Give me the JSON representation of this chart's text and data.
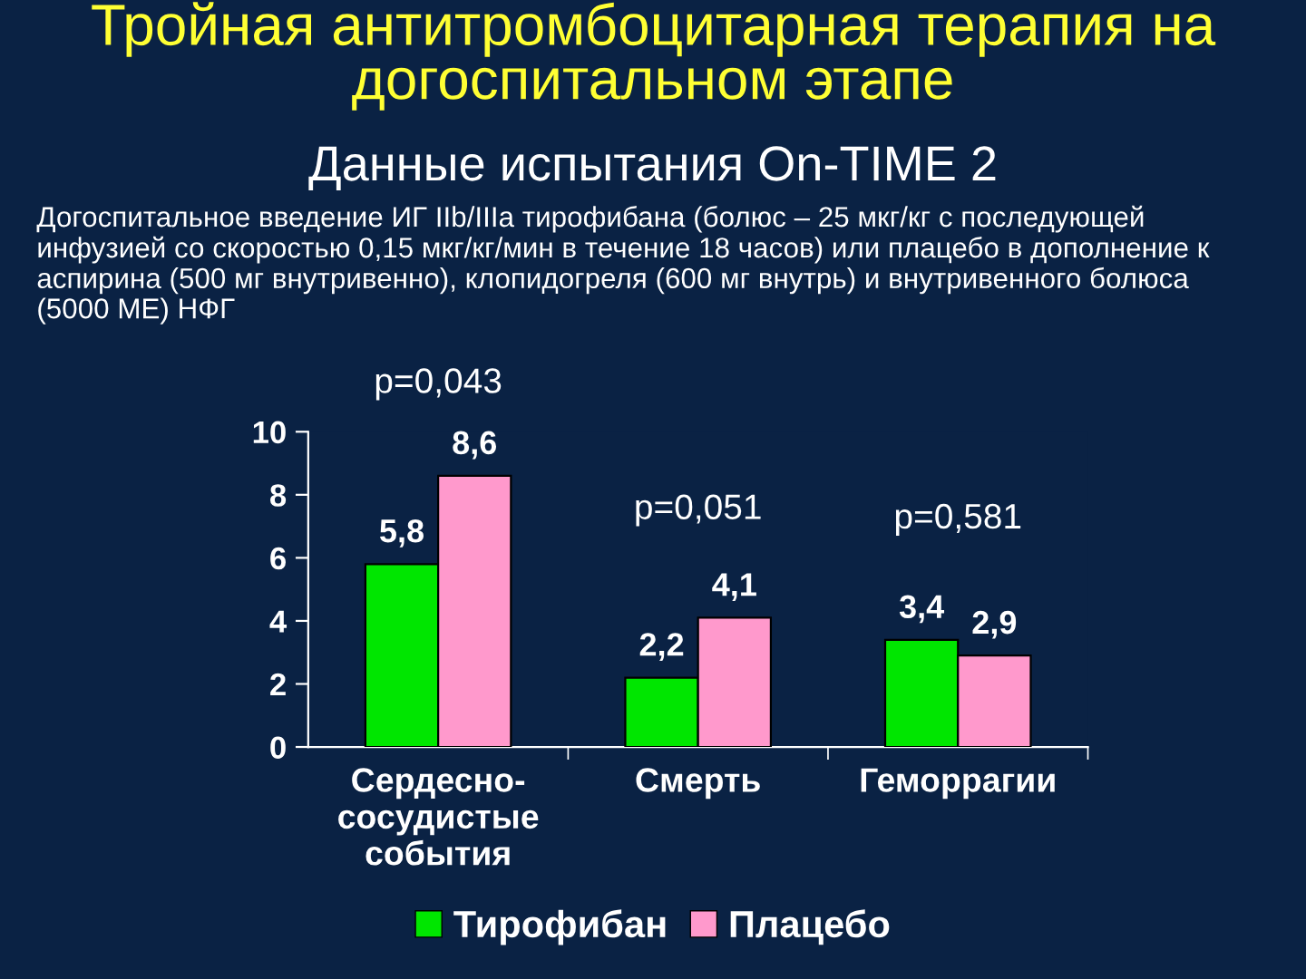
{
  "chart_data": {
    "type": "bar",
    "title": "Тройная антитромбоцитарная терапия на\nдогоспитальном этапе",
    "subtitle": "Данные испытания On-TIME 2",
    "annotations": [
      "Догоспитальное введение ИГ IIb/IIIa тирофибана (болюс – 25 мкг/кг с последующей\nинфузией со скоростью 0,15 мкг/кг/мин в течение 18 часов) или плацебо в дополнение к\nаспирина (500 мг внутривенно), клопидогреля (600 мг внутрь) и внутривенного болюса\n(5000 МЕ) НФГ",
      "p=0,043",
      "p=0,051",
      "p=0,581"
    ],
    "categories": [
      "Сердесно-\nсосудистые\nсобытия",
      "Смерть",
      "Геморрагии"
    ],
    "series": [
      {
        "name": "Тирофибан",
        "color": "#00e600",
        "values": [
          5.8,
          2.2,
          3.4
        ],
        "value_labels": [
          "5,8",
          "2,2",
          "3,4"
        ]
      },
      {
        "name": "Плацебо",
        "color": "#ff99cc",
        "values": [
          8.6,
          4.1,
          2.9
        ],
        "value_labels": [
          "8,6",
          "4,1",
          "2,9"
        ]
      }
    ],
    "ylim": [
      0,
      10
    ],
    "yticks": [
      0,
      2,
      4,
      6,
      8,
      10
    ],
    "grid": false,
    "legend": "bottom"
  }
}
